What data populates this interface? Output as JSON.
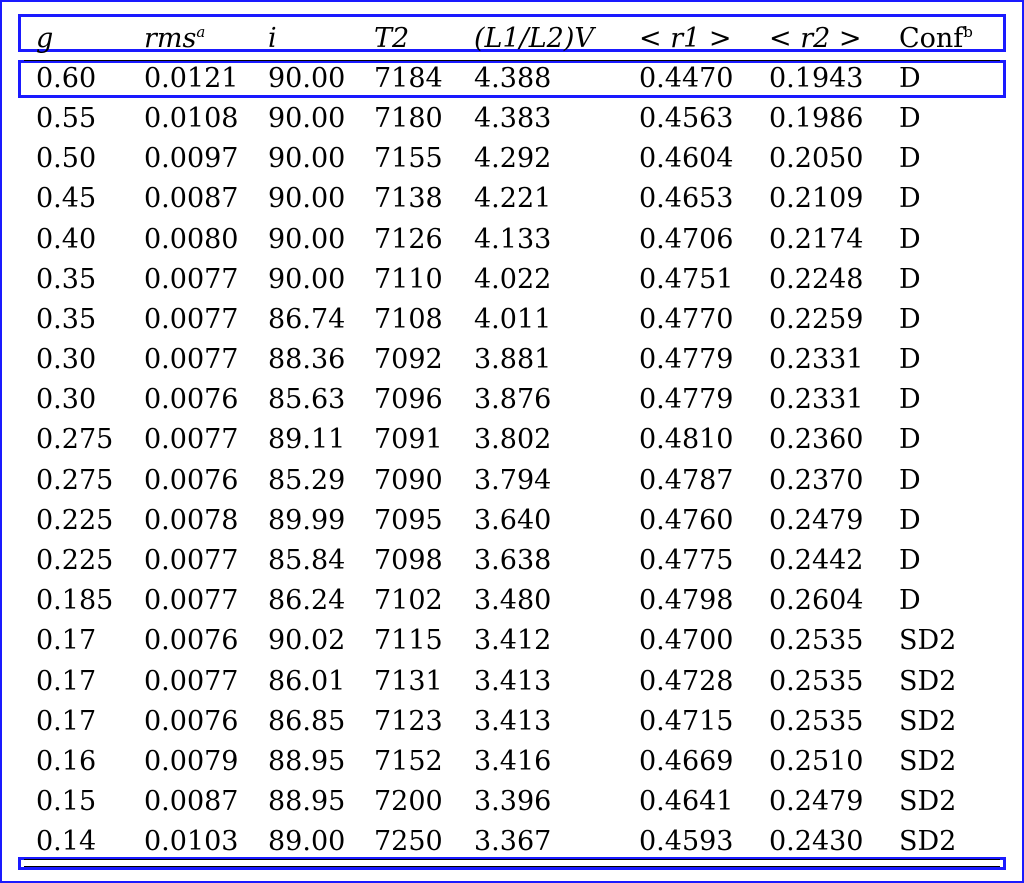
{
  "table": {
    "headers": {
      "g": "g",
      "rms": "rms",
      "rms_sup": "a",
      "i": "i",
      "t2": "T2",
      "l_ratio": "(L1/L2)V",
      "r1": "< r1 >",
      "r2": "< r2 >",
      "conf": "Conf",
      "conf_sup": "b"
    },
    "rows": [
      [
        "0.60",
        "0.0121",
        "90.00",
        "7184",
        "4.388",
        "0.4470",
        "0.1943",
        "D"
      ],
      [
        "0.55",
        "0.0108",
        "90.00",
        "7180",
        "4.383",
        "0.4563",
        "0.1986",
        "D"
      ],
      [
        "0.50",
        "0.0097",
        "90.00",
        "7155",
        "4.292",
        "0.4604",
        "0.2050",
        "D"
      ],
      [
        "0.45",
        "0.0087",
        "90.00",
        "7138",
        "4.221",
        "0.4653",
        "0.2109",
        "D"
      ],
      [
        "0.40",
        "0.0080",
        "90.00",
        "7126",
        "4.133",
        "0.4706",
        "0.2174",
        "D"
      ],
      [
        "0.35",
        "0.0077",
        "90.00",
        "7110",
        "4.022",
        "0.4751",
        "0.2248",
        "D"
      ],
      [
        "0.35",
        "0.0077",
        "86.74",
        "7108",
        "4.011",
        "0.4770",
        "0.2259",
        "D"
      ],
      [
        "0.30",
        "0.0077",
        "88.36",
        "7092",
        "3.881",
        "0.4779",
        "0.2331",
        "D"
      ],
      [
        "0.30",
        "0.0076",
        "85.63",
        "7096",
        "3.876",
        "0.4779",
        "0.2331",
        "D"
      ],
      [
        "0.275",
        "0.0077",
        "89.11",
        "7091",
        "3.802",
        "0.4810",
        "0.2360",
        "D"
      ],
      [
        "0.275",
        "0.0076",
        "85.29",
        "7090",
        "3.794",
        "0.4787",
        "0.2370",
        "D"
      ],
      [
        "0.225",
        "0.0078",
        "89.99",
        "7095",
        "3.640",
        "0.4760",
        "0.2479",
        "D"
      ],
      [
        "0.225",
        "0.0077",
        "85.84",
        "7098",
        "3.638",
        "0.4775",
        "0.2442",
        "D"
      ],
      [
        "0.185",
        "0.0077",
        "86.24",
        "7102",
        "3.480",
        "0.4798",
        "0.2604",
        "D"
      ],
      [
        "0.17",
        "0.0076",
        "90.02",
        "7115",
        "3.412",
        "0.4700",
        "0.2535",
        "SD2"
      ],
      [
        "0.17",
        "0.0077",
        "86.01",
        "7131",
        "3.413",
        "0.4728",
        "0.2535",
        "SD2"
      ],
      [
        "0.17",
        "0.0076",
        "86.85",
        "7123",
        "3.413",
        "0.4715",
        "0.2535",
        "SD2"
      ],
      [
        "0.16",
        "0.0079",
        "88.95",
        "7152",
        "3.416",
        "0.4669",
        "0.2510",
        "SD2"
      ],
      [
        "0.15",
        "0.0087",
        "88.95",
        "7200",
        "3.396",
        "0.4641",
        "0.2479",
        "SD2"
      ],
      [
        "0.14",
        "0.0103",
        "89.00",
        "7250",
        "3.367",
        "0.4593",
        "0.2430",
        "SD2"
      ]
    ]
  },
  "colors": {
    "highlight_box": "#1a1aff",
    "text": "#000000",
    "background": "#ffffff"
  }
}
